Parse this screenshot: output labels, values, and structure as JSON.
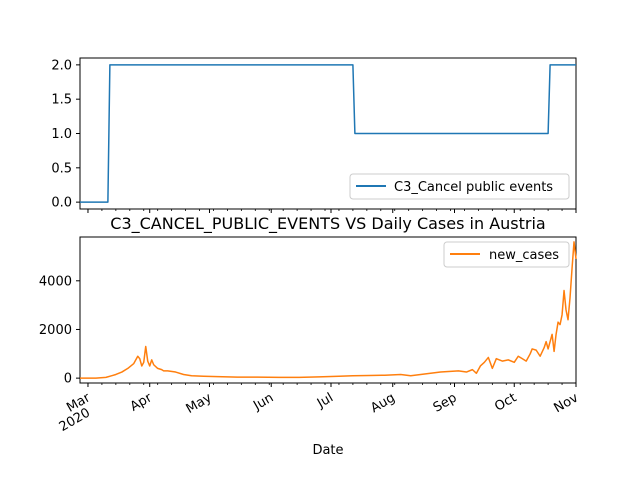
{
  "chart_data": [
    {
      "type": "line",
      "title": "",
      "xlabel": "",
      "ylabel": "",
      "xlim": [
        "2020-02-26",
        "2020-11-01"
      ],
      "ylim": [
        -0.1,
        2.1
      ],
      "yticks": [
        "0.0",
        "0.5",
        "1.0",
        "1.5",
        "2.0"
      ],
      "legend_position": "lower-right",
      "series": [
        {
          "name": "C3_Cancel public events",
          "color": "#1f77b4",
          "x": [
            "2020-02-26",
            "2020-03-11",
            "2020-03-12",
            "2020-07-12",
            "2020-07-13",
            "2020-10-18",
            "2020-10-19",
            "2020-11-01"
          ],
          "values": [
            0,
            0,
            2,
            2,
            1,
            1,
            2,
            2
          ]
        }
      ]
    },
    {
      "type": "line",
      "title": "C3_CANCEL_PUBLIC_EVENTS VS Daily Cases in Austria",
      "xlabel": "Date",
      "ylabel": "",
      "xlim": [
        "2020-02-26",
        "2020-11-01"
      ],
      "ylim": [
        -200,
        5800
      ],
      "yticks": [
        "0",
        "2000",
        "4000"
      ],
      "xticks": [
        {
          "date": "2020-03-01",
          "label": "Mar",
          "sublabel": "2020"
        },
        {
          "date": "2020-04-01",
          "label": "Apr",
          "sublabel": ""
        },
        {
          "date": "2020-05-01",
          "label": "May",
          "sublabel": ""
        },
        {
          "date": "2020-06-01",
          "label": "Jun",
          "sublabel": ""
        },
        {
          "date": "2020-07-01",
          "label": "Jul",
          "sublabel": ""
        },
        {
          "date": "2020-08-01",
          "label": "Aug",
          "sublabel": ""
        },
        {
          "date": "2020-09-01",
          "label": "Sep",
          "sublabel": ""
        },
        {
          "date": "2020-10-01",
          "label": "Oct",
          "sublabel": ""
        },
        {
          "date": "2020-11-01",
          "label": "Nov",
          "sublabel": ""
        }
      ],
      "legend_position": "upper-right",
      "series": [
        {
          "name": "new_cases",
          "color": "#ff7f0e",
          "x": [
            "2020-02-26",
            "2020-03-05",
            "2020-03-10",
            "2020-03-13",
            "2020-03-15",
            "2020-03-18",
            "2020-03-21",
            "2020-03-24",
            "2020-03-26",
            "2020-03-27",
            "2020-03-28",
            "2020-03-29",
            "2020-03-30",
            "2020-03-31",
            "2020-04-01",
            "2020-04-02",
            "2020-04-03",
            "2020-04-05",
            "2020-04-07",
            "2020-04-08",
            "2020-04-10",
            "2020-04-14",
            "2020-04-18",
            "2020-04-22",
            "2020-04-28",
            "2020-05-05",
            "2020-05-15",
            "2020-05-25",
            "2020-06-05",
            "2020-06-15",
            "2020-06-25",
            "2020-07-05",
            "2020-07-12",
            "2020-07-20",
            "2020-07-28",
            "2020-08-05",
            "2020-08-10",
            "2020-08-15",
            "2020-08-20",
            "2020-08-25",
            "2020-08-30",
            "2020-09-03",
            "2020-09-07",
            "2020-09-10",
            "2020-09-12",
            "2020-09-14",
            "2020-09-16",
            "2020-09-18",
            "2020-09-20",
            "2020-09-22",
            "2020-09-25",
            "2020-09-28",
            "2020-10-01",
            "2020-10-03",
            "2020-10-05",
            "2020-10-07",
            "2020-10-09",
            "2020-10-10",
            "2020-10-12",
            "2020-10-14",
            "2020-10-16",
            "2020-10-17",
            "2020-10-18",
            "2020-10-20",
            "2020-10-21",
            "2020-10-22",
            "2020-10-23",
            "2020-10-24",
            "2020-10-25",
            "2020-10-26",
            "2020-10-27",
            "2020-10-28",
            "2020-10-29",
            "2020-10-30",
            "2020-10-31",
            "2020-11-01"
          ],
          "values": [
            0,
            2,
            30,
            100,
            150,
            250,
            400,
            600,
            900,
            800,
            500,
            650,
            1300,
            700,
            500,
            750,
            550,
            400,
            350,
            300,
            300,
            250,
            150,
            100,
            80,
            60,
            40,
            40,
            30,
            30,
            50,
            80,
            100,
            110,
            120,
            150,
            100,
            150,
            200,
            250,
            280,
            300,
            250,
            350,
            200,
            500,
            650,
            850,
            400,
            800,
            700,
            750,
            650,
            900,
            800,
            700,
            1000,
            1200,
            1150,
            900,
            1250,
            1500,
            1200,
            1800,
            1100,
            1800,
            2300,
            2200,
            2600,
            3600,
            2800,
            2400,
            3300,
            4500,
            5600,
            4900
          ]
        }
      ]
    }
  ]
}
